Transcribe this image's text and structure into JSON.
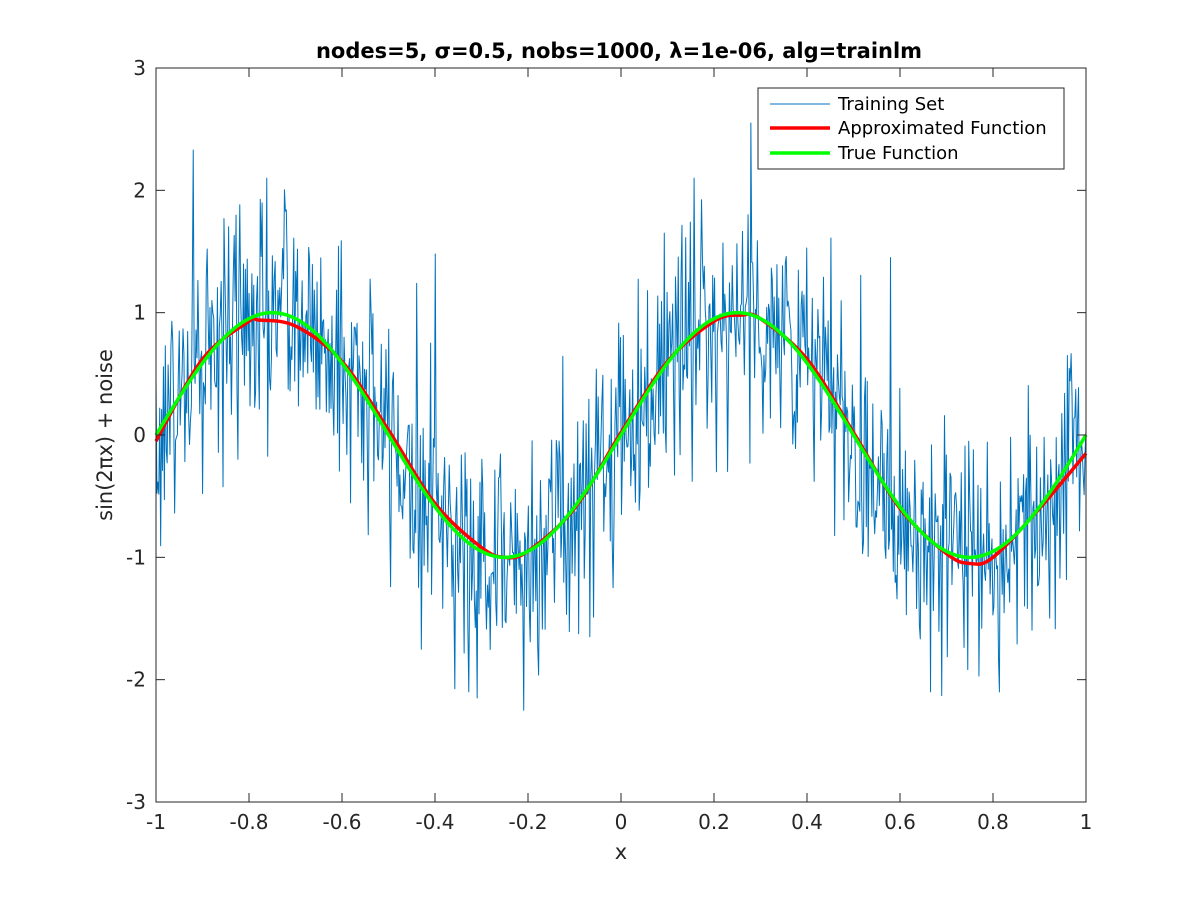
{
  "chart_data": {
    "type": "line",
    "title": "nodes=5, σ=0.5, nobs=1000, λ=1e-06, alg=trainlm",
    "xlabel": "x",
    "ylabel": "sin(2πx) + noise",
    "xlim": [
      -1,
      1
    ],
    "ylim": [
      -3,
      3
    ],
    "xticks": [
      -1,
      -0.8,
      -0.6,
      -0.4,
      -0.2,
      0,
      0.2,
      0.4,
      0.6,
      0.8,
      1
    ],
    "xtick_labels": [
      "-1",
      "-0.8",
      "-0.6",
      "-0.4",
      "-0.2",
      "0",
      "0.2",
      "0.4",
      "0.6",
      "0.8",
      "1"
    ],
    "yticks": [
      -3,
      -2,
      -1,
      0,
      1,
      2,
      3
    ],
    "ytick_labels": [
      "-3",
      "-2",
      "-1",
      "0",
      "1",
      "2",
      "3"
    ],
    "grid": false,
    "legend_position": "top-right",
    "series": [
      {
        "name": "Training Set",
        "color": "#0072BD",
        "line_width": "thin",
        "n_points": 1000,
        "model": "sin(2πx) + Gaussian noise",
        "noise_sigma": 0.5,
        "notable_points": [
          {
            "x": -0.92,
            "y": 2.33
          },
          {
            "x": 0.28,
            "y": 2.55
          },
          {
            "x": -0.31,
            "y": -2.15
          },
          {
            "x": -0.21,
            "y": -2.25
          },
          {
            "x": 0.69,
            "y": -2.13
          },
          {
            "x": 0.77,
            "y": -1.97
          },
          {
            "x": -0.72,
            "y": 1.84
          },
          {
            "x": -0.89,
            "y": 1.52
          },
          {
            "x": -0.4,
            "y": 1.48
          },
          {
            "x": 0.15,
            "y": 1.74
          },
          {
            "x": 0.58,
            "y": 1.45
          },
          {
            "x": -0.33,
            "y": -1.58
          },
          {
            "x": -0.18,
            "y": -1.72
          }
        ]
      },
      {
        "name": "Approximated Function",
        "color": "#FF0000",
        "line_width": "thick",
        "x": [
          -1,
          -0.9,
          -0.8,
          -0.78,
          -0.7,
          -0.6,
          -0.5,
          -0.4,
          -0.3,
          -0.25,
          -0.2,
          -0.1,
          0,
          0.1,
          0.2,
          0.26,
          0.3,
          0.4,
          0.5,
          0.6,
          0.7,
          0.75,
          0.8,
          0.9,
          1
        ],
        "y": [
          -0.05,
          0.62,
          0.93,
          0.94,
          0.89,
          0.6,
          0.04,
          -0.56,
          -0.92,
          -1.0,
          -0.95,
          -0.6,
          0.02,
          0.6,
          0.93,
          0.98,
          0.95,
          0.62,
          0.02,
          -0.6,
          -0.97,
          -1.05,
          -1.0,
          -0.6,
          -0.15
        ]
      },
      {
        "name": "True Function",
        "color": "#00FF00",
        "line_width": "thick",
        "expression": "sin(2πx)",
        "x_range": [
          -1,
          1
        ]
      }
    ]
  }
}
